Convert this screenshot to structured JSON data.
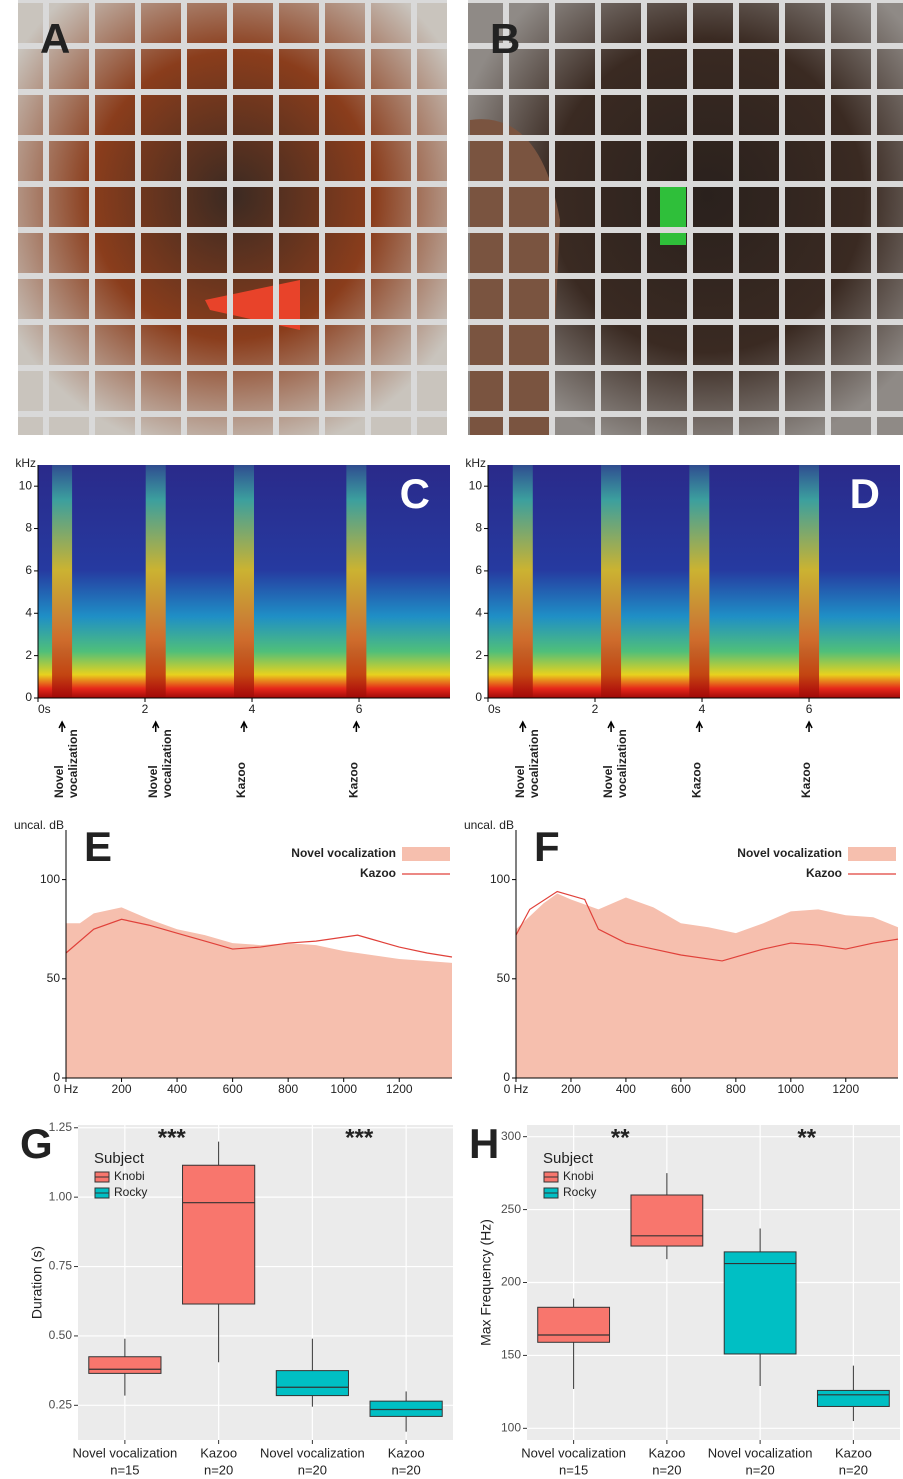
{
  "photos": [
    {
      "label": "A"
    },
    {
      "label": "B"
    }
  ],
  "chart_data": [
    {
      "type": "spectrogram",
      "panel_label": "C",
      "y_label": "kHz",
      "xlim": [
        0,
        7.7
      ],
      "ylim": [
        0,
        11
      ],
      "xticks": [
        {
          "value": 0,
          "label": "0s"
        },
        2,
        4,
        6
      ],
      "yticks": [
        0,
        2,
        4,
        6,
        8,
        10
      ],
      "annotations": [
        {
          "x": 0.45,
          "label_lines": [
            "Novel",
            "vocalization"
          ]
        },
        {
          "x": 2.2,
          "label_lines": [
            "Novel",
            "vocalization"
          ]
        },
        {
          "x": 3.85,
          "label_lines": [
            "Kazoo"
          ]
        },
        {
          "x": 5.95,
          "label_lines": [
            "Kazoo"
          ]
        }
      ]
    },
    {
      "type": "spectrogram",
      "panel_label": "D",
      "y_label": "kHz",
      "xlim": [
        0,
        7.7
      ],
      "ylim": [
        0,
        11
      ],
      "xticks": [
        {
          "value": 0,
          "label": "0s"
        },
        2,
        4,
        6
      ],
      "yticks": [
        0,
        2,
        4,
        6,
        8,
        10
      ],
      "annotations": [
        {
          "x": 0.65,
          "label_lines": [
            "Novel",
            "vocalization"
          ]
        },
        {
          "x": 2.3,
          "label_lines": [
            "Novel",
            "vocalization"
          ]
        },
        {
          "x": 3.95,
          "label_lines": [
            "Kazoo"
          ]
        },
        {
          "x": 6.0,
          "label_lines": [
            "Kazoo"
          ]
        }
      ]
    },
    {
      "type": "area-line",
      "panel_label": "E",
      "y_label": "uncal. dB",
      "xlim": [
        0,
        1390
      ],
      "ylim": [
        0,
        125
      ],
      "xticks": [
        {
          "value": 0,
          "label": "0 Hz"
        },
        200,
        400,
        600,
        800,
        1000,
        1200
      ],
      "yticks": [
        0,
        50,
        100
      ],
      "legend": "top-right",
      "series": [
        {
          "name": "Novel vocalization",
          "kind": "area",
          "color": "#f6bfae",
          "x": [
            0,
            50,
            100,
            200,
            300,
            400,
            500,
            600,
            700,
            800,
            900,
            1000,
            1100,
            1200,
            1300,
            1390
          ],
          "values": [
            78,
            78,
            83,
            86,
            80,
            75,
            72,
            68,
            67,
            68,
            67,
            64,
            62,
            60,
            59,
            58
          ]
        },
        {
          "name": "Kazoo",
          "kind": "line",
          "color": "#e0413a",
          "x": [
            0,
            100,
            200,
            300,
            400,
            500,
            600,
            700,
            800,
            900,
            1000,
            1050,
            1100,
            1200,
            1300,
            1390
          ],
          "values": [
            63,
            75,
            80,
            77,
            73,
            69,
            65,
            66,
            68,
            69,
            71,
            72,
            70,
            66,
            63,
            61
          ]
        }
      ]
    },
    {
      "type": "area-line",
      "panel_label": "F",
      "y_label": "uncal. dB",
      "xlim": [
        0,
        1390
      ],
      "ylim": [
        0,
        125
      ],
      "xticks": [
        {
          "value": 0,
          "label": "0 Hz"
        },
        200,
        400,
        600,
        800,
        1000,
        1200
      ],
      "yticks": [
        0,
        50,
        100
      ],
      "legend": "top-right",
      "series": [
        {
          "name": "Novel vocalization",
          "kind": "area",
          "color": "#f6bfae",
          "x": [
            0,
            100,
            150,
            200,
            300,
            400,
            500,
            600,
            700,
            800,
            900,
            1000,
            1100,
            1200,
            1300,
            1390
          ],
          "values": [
            75,
            88,
            93,
            90,
            85,
            91,
            86,
            78,
            76,
            73,
            78,
            84,
            85,
            82,
            81,
            76
          ]
        },
        {
          "name": "Kazoo",
          "kind": "line",
          "color": "#e0413a",
          "x": [
            0,
            50,
            150,
            250,
            300,
            400,
            500,
            600,
            700,
            750,
            800,
            900,
            1000,
            1100,
            1200,
            1300,
            1390
          ],
          "values": [
            72,
            85,
            94,
            90,
            75,
            68,
            65,
            62,
            60,
            59,
            61,
            65,
            68,
            67,
            65,
            68,
            70
          ]
        }
      ]
    },
    {
      "type": "box",
      "panel_label": "G",
      "y_label": "Duration (s)",
      "legend_title": "Subject",
      "grid": true,
      "categories": [
        "Novel vocalization",
        "Kazoo",
        "Novel vocalization",
        "Kazoo"
      ],
      "category_notes": [
        "n=15",
        "n=20",
        "n=20",
        "n=20"
      ],
      "ylim": [
        0.125,
        1.26
      ],
      "yticks": [
        0.25,
        {
          "value": 0.5,
          "label": "0.50"
        },
        0.75,
        {
          "value": 1,
          "label": "1.00"
        },
        1.25
      ],
      "series": [
        {
          "name": "Knobi",
          "color": "#f8766d",
          "values": [
            {
              "min": 0.285,
              "q1": 0.365,
              "median": 0.38,
              "q3": 0.425,
              "max": 0.49
            },
            {
              "min": 0.405,
              "q1": 0.615,
              "median": 0.98,
              "q3": 1.115,
              "max": 1.2
            },
            null,
            null
          ]
        },
        {
          "name": "Rocky",
          "color": "#00bfc4",
          "values": [
            null,
            null,
            {
              "min": 0.245,
              "q1": 0.285,
              "median": 0.315,
              "q3": 0.375,
              "max": 0.49
            },
            {
              "min": 0.155,
              "q1": 0.21,
              "median": 0.235,
              "q3": 0.265,
              "max": 0.3
            }
          ]
        }
      ],
      "significance": [
        {
          "label": "***",
          "categories": [
            0,
            1
          ]
        },
        {
          "label": "***",
          "categories": [
            2,
            3
          ]
        }
      ]
    },
    {
      "type": "box",
      "panel_label": "H",
      "y_label": "Max Frequency (Hz)",
      "legend_title": "Subject",
      "grid": true,
      "categories": [
        "Novel vocalization",
        "Kazoo",
        "Novel vocalization",
        "Kazoo"
      ],
      "category_notes": [
        "n=15",
        "n=20",
        "n=20",
        "n=20"
      ],
      "ylim": [
        92,
        308
      ],
      "yticks": [
        100,
        150,
        200,
        250,
        300
      ],
      "series": [
        {
          "name": "Knobi",
          "color": "#f8766d",
          "values": [
            {
              "min": 127,
              "q1": 159,
              "median": 164,
              "q3": 183,
              "max": 189
            },
            {
              "min": 216,
              "q1": 225,
              "median": 232,
              "q3": 260,
              "max": 275
            },
            null,
            null
          ]
        },
        {
          "name": "Rocky",
          "color": "#00bfc4",
          "values": [
            null,
            null,
            {
              "min": 129,
              "q1": 151,
              "median": 213,
              "q3": 221,
              "max": 237
            },
            {
              "min": 105,
              "q1": 115,
              "median": 123,
              "q3": 126,
              "max": 143
            }
          ]
        }
      ],
      "significance": [
        {
          "label": "**",
          "categories": [
            0,
            1
          ]
        },
        {
          "label": "**",
          "categories": [
            2,
            3
          ]
        }
      ]
    }
  ]
}
